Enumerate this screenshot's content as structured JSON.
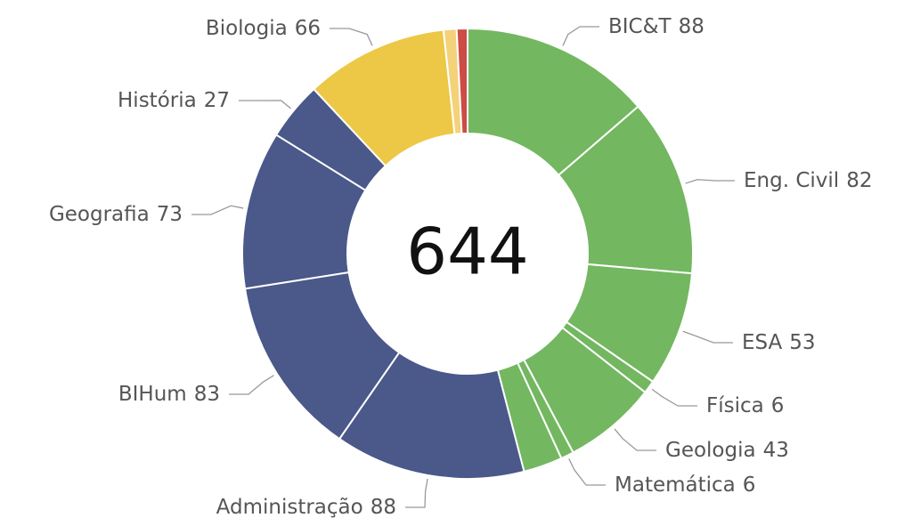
{
  "chart_data": {
    "type": "donut",
    "categories": [
      "BIC&T",
      "Eng. Civil",
      "ESA",
      "Física",
      "Geologia",
      "Matemática",
      null,
      "Administração",
      "BIHum",
      "Geografia",
      "História",
      "Biologia",
      null,
      null
    ],
    "values": [
      88,
      82,
      53,
      6,
      43,
      6,
      18,
      88,
      83,
      73,
      27,
      66,
      6,
      5
    ],
    "colors": [
      "#73b761",
      "#73b761",
      "#73b761",
      "#73b761",
      "#73b761",
      "#73b761",
      "#73b761",
      "#4a588a",
      "#4a588a",
      "#4a588a",
      "#4a588a",
      "#ecc846",
      "#f3d27a",
      "#cd4c46"
    ],
    "total": 644
  }
}
